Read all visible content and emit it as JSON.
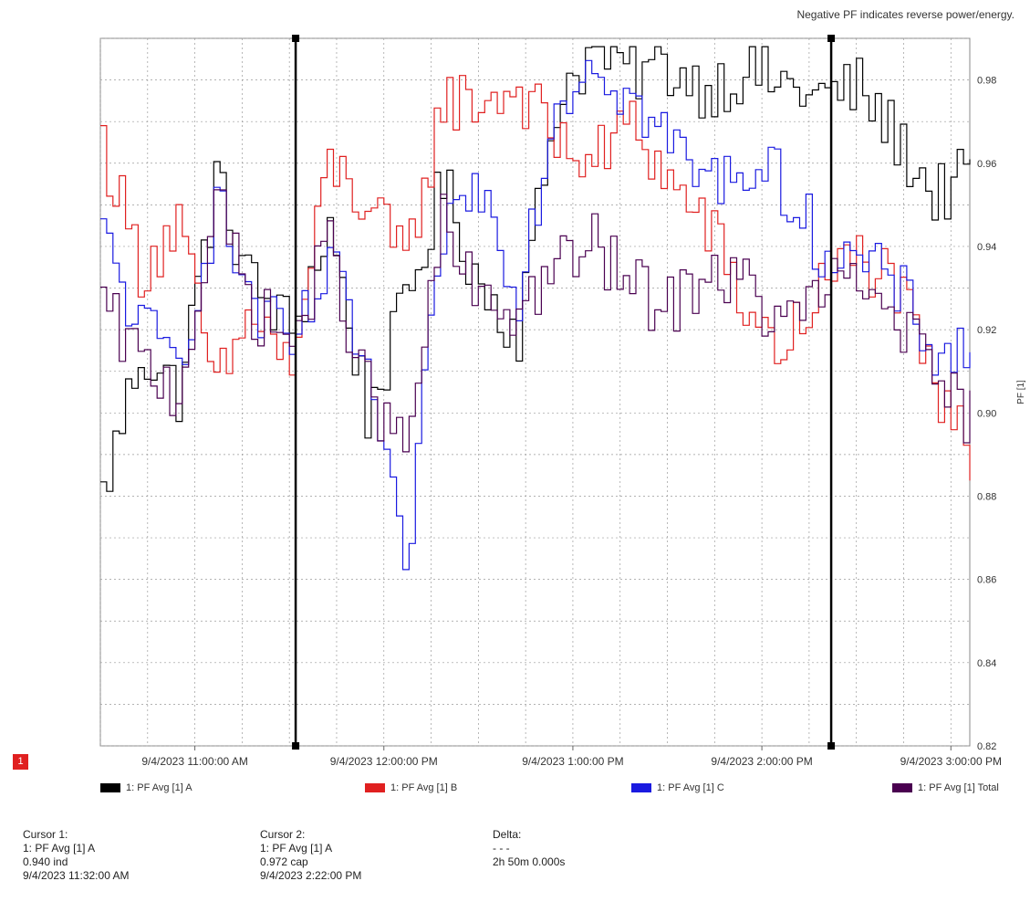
{
  "note": "Negative PF indicates reverse power/energy.",
  "badge": "1",
  "chart_data": {
    "type": "line",
    "ylabel": "PF [1]",
    "ylim": [
      0.82,
      0.99
    ],
    "yticks": [
      0.82,
      0.84,
      0.86,
      0.88,
      0.9,
      0.92,
      0.94,
      0.96,
      0.98
    ],
    "xlim_minutes": [
      630,
      906
    ],
    "xticks": [
      {
        "label": "9/4/2023 11:00:00 AM",
        "minute": 660
      },
      {
        "label": "9/4/2023 12:00:00 PM",
        "minute": 720
      },
      {
        "label": "9/4/2023 1:00:00 PM",
        "minute": 780
      },
      {
        "label": "9/4/2023 2:00:00 PM",
        "minute": 840
      },
      {
        "label": "9/4/2023 3:00:00 PM",
        "minute": 900
      }
    ],
    "grid": true,
    "cursors": [
      {
        "label": "Cursor 1",
        "minute": 692
      },
      {
        "label": "Cursor 2",
        "minute": 862
      }
    ],
    "x_minutes": [
      630,
      642,
      654,
      666,
      678,
      690,
      702,
      714,
      726,
      738,
      750,
      762,
      774,
      786,
      798,
      810,
      822,
      834,
      846,
      858,
      870,
      882,
      894,
      906
    ],
    "series": [
      {
        "name": "1: PF Avg [1] A",
        "color": "#000000",
        "values": [
          0.88,
          0.915,
          0.905,
          0.955,
          0.93,
          0.92,
          0.945,
          0.9,
          0.925,
          0.955,
          0.93,
          0.92,
          0.975,
          0.988,
          0.982,
          0.983,
          0.978,
          0.982,
          0.979,
          0.976,
          0.978,
          0.966,
          0.952,
          0.957
        ]
      },
      {
        "name": "1: PF Avg [1] B",
        "color": "#e02020",
        "values": [
          0.965,
          0.935,
          0.945,
          0.905,
          0.925,
          0.91,
          0.96,
          0.95,
          0.935,
          0.975,
          0.975,
          0.978,
          0.965,
          0.96,
          0.97,
          0.955,
          0.945,
          0.925,
          0.915,
          0.93,
          0.938,
          0.93,
          0.905,
          0.89
        ]
      },
      {
        "name": "1: PF Avg [1] C",
        "color": "#1a1ae0",
        "values": [
          0.942,
          0.92,
          0.912,
          0.95,
          0.925,
          0.915,
          0.935,
          0.91,
          0.86,
          0.945,
          0.955,
          0.93,
          0.975,
          0.986,
          0.975,
          0.965,
          0.955,
          0.96,
          0.955,
          0.94,
          0.936,
          0.93,
          0.915,
          0.915
        ]
      },
      {
        "name": "1: PF Avg [1] Total",
        "color": "#4a0050",
        "values": [
          0.925,
          0.912,
          0.905,
          0.95,
          0.925,
          0.917,
          0.94,
          0.905,
          0.89,
          0.945,
          0.925,
          0.925,
          0.935,
          0.94,
          0.93,
          0.925,
          0.935,
          0.93,
          0.92,
          0.93,
          0.93,
          0.925,
          0.905,
          0.9
        ]
      }
    ]
  },
  "legend": [
    {
      "label": "1: PF Avg [1] A",
      "color": "#000000"
    },
    {
      "label": "1: PF Avg [1] B",
      "color": "#e02020"
    },
    {
      "label": "1: PF Avg [1] C",
      "color": "#1a1ae0"
    },
    {
      "label": "1: PF Avg [1] Total",
      "color": "#4a0050"
    }
  ],
  "cursor1": {
    "title": "Cursor 1:",
    "series": "1: PF Avg [1] A",
    "value": "0.940 ind",
    "time": "9/4/2023 11:32:00 AM"
  },
  "cursor2": {
    "title": "Cursor 2:",
    "series": "1: PF Avg [1] A",
    "value": "0.972 cap",
    "time": "9/4/2023 2:22:00 PM"
  },
  "delta": {
    "title": "Delta:",
    "value": "- - -",
    "time": "2h 50m 0.000s"
  }
}
